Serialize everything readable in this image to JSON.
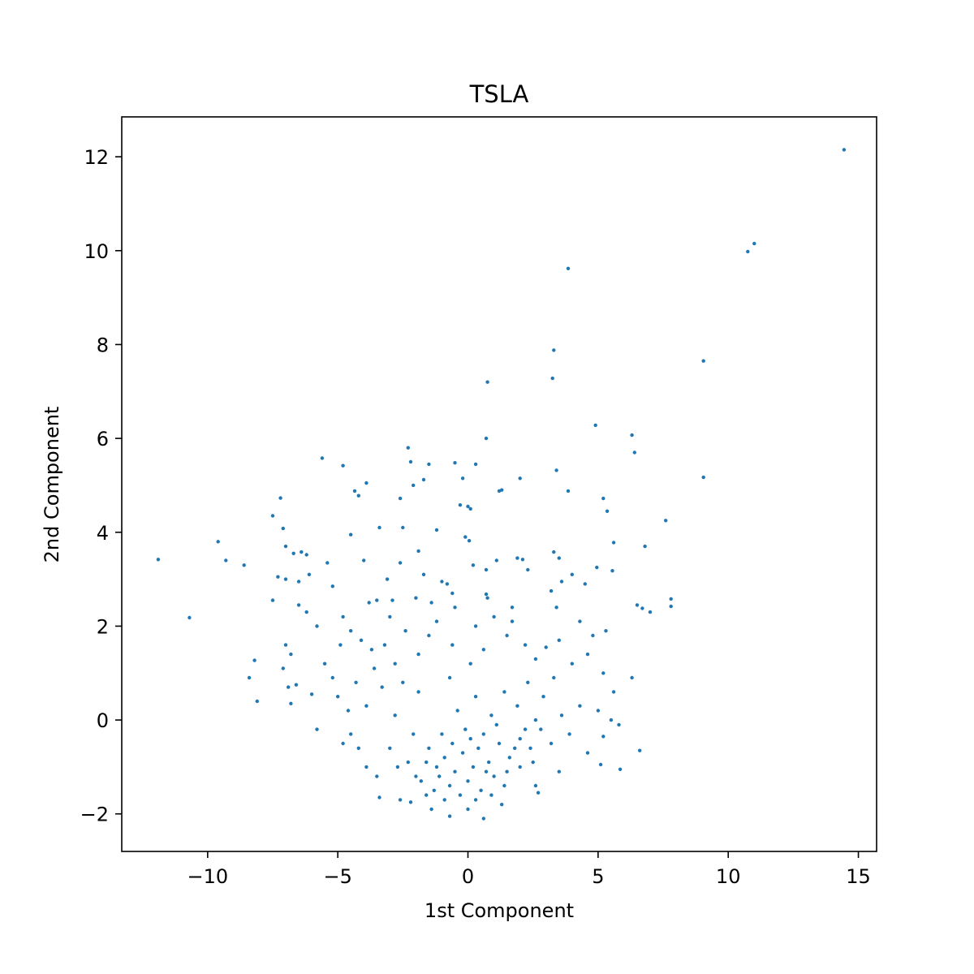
{
  "chart_data": {
    "type": "scatter",
    "title": "TSLA",
    "xlabel": "1st Component",
    "ylabel": "2nd Component",
    "xlim": [
      -13.3,
      15.7
    ],
    "ylim": [
      -2.8,
      12.85
    ],
    "xticks": [
      -10,
      -5,
      0,
      5,
      10,
      15
    ],
    "xtick_labels": [
      "−10",
      "−5",
      "0",
      "5",
      "10",
      "15"
    ],
    "yticks": [
      -2,
      0,
      2,
      4,
      6,
      8,
      10,
      12
    ],
    "ytick_labels": [
      "−2",
      "0",
      "2",
      "4",
      "6",
      "8",
      "10",
      "12"
    ],
    "grid": false,
    "legend": "none",
    "marker_color": "#1f77b4",
    "series": [
      {
        "points": [
          [
            14.45,
            12.15
          ],
          [
            11.0,
            10.15
          ],
          [
            10.75,
            9.98
          ],
          [
            3.85,
            9.62
          ],
          [
            3.3,
            7.88
          ],
          [
            9.05,
            7.65
          ],
          [
            3.25,
            7.28
          ],
          [
            0.75,
            7.2
          ],
          [
            4.9,
            6.28
          ],
          [
            6.3,
            6.07
          ],
          [
            0.7,
            6.0
          ],
          [
            6.4,
            5.7
          ],
          [
            -2.3,
            5.8
          ],
          [
            -5.6,
            5.58
          ],
          [
            -4.8,
            5.42
          ],
          [
            -2.2,
            5.5
          ],
          [
            -1.5,
            5.45
          ],
          [
            -0.5,
            5.48
          ],
          [
            0.3,
            5.45
          ],
          [
            9.05,
            5.17
          ],
          [
            3.4,
            5.32
          ],
          [
            2.0,
            5.15
          ],
          [
            -1.7,
            5.12
          ],
          [
            -0.2,
            5.15
          ],
          [
            -3.9,
            5.05
          ],
          [
            -2.1,
            5.0
          ],
          [
            1.2,
            4.88
          ],
          [
            1.3,
            4.9
          ],
          [
            3.85,
            4.88
          ],
          [
            -4.35,
            4.88
          ],
          [
            -4.2,
            4.78
          ],
          [
            -2.6,
            4.72
          ],
          [
            5.2,
            4.72
          ],
          [
            -7.2,
            4.73
          ],
          [
            -0.3,
            4.58
          ],
          [
            0.0,
            4.55
          ],
          [
            0.1,
            4.5
          ],
          [
            5.35,
            4.45
          ],
          [
            -7.5,
            4.35
          ],
          [
            7.6,
            4.25
          ],
          [
            -2.5,
            4.1
          ],
          [
            -3.4,
            4.1
          ],
          [
            -7.1,
            4.08
          ],
          [
            -1.2,
            4.05
          ],
          [
            -4.5,
            3.95
          ],
          [
            -0.1,
            3.9
          ],
          [
            0.05,
            3.82
          ],
          [
            -9.6,
            3.8
          ],
          [
            5.6,
            3.78
          ],
          [
            -7.0,
            3.7
          ],
          [
            6.8,
            3.7
          ],
          [
            -1.9,
            3.6
          ],
          [
            3.3,
            3.58
          ],
          [
            -6.7,
            3.55
          ],
          [
            -6.4,
            3.58
          ],
          [
            -6.2,
            3.52
          ],
          [
            -11.9,
            3.42
          ],
          [
            -9.3,
            3.4
          ],
          [
            -8.6,
            3.3
          ],
          [
            -5.4,
            3.35
          ],
          [
            -4.0,
            3.4
          ],
          [
            -2.6,
            3.35
          ],
          [
            1.1,
            3.4
          ],
          [
            1.9,
            3.45
          ],
          [
            2.1,
            3.42
          ],
          [
            3.5,
            3.45
          ],
          [
            4.95,
            3.25
          ],
          [
            5.55,
            3.18
          ],
          [
            2.3,
            3.2
          ],
          [
            0.7,
            3.2
          ],
          [
            -7.3,
            3.05
          ],
          [
            -7.0,
            3.0
          ],
          [
            -6.5,
            2.95
          ],
          [
            -6.1,
            3.1
          ],
          [
            -1.0,
            2.95
          ],
          [
            -0.8,
            2.9
          ],
          [
            4.0,
            3.1
          ],
          [
            4.5,
            2.9
          ],
          [
            3.6,
            2.95
          ],
          [
            -5.2,
            2.85
          ],
          [
            7.8,
            2.58
          ],
          [
            7.8,
            2.42
          ],
          [
            6.5,
            2.45
          ],
          [
            6.7,
            2.38
          ],
          [
            7.0,
            2.3
          ],
          [
            0.7,
            2.68
          ],
          [
            0.75,
            2.6
          ],
          [
            3.2,
            2.75
          ],
          [
            -6.5,
            2.45
          ],
          [
            -7.5,
            2.55
          ],
          [
            -3.5,
            2.55
          ],
          [
            -2.9,
            2.55
          ],
          [
            1.7,
            2.4
          ],
          [
            -10.7,
            2.18
          ],
          [
            -8.2,
            1.27
          ],
          [
            -7.0,
            1.6
          ],
          [
            -6.8,
            1.4
          ],
          [
            -8.4,
            0.9
          ],
          [
            -8.1,
            0.4
          ],
          [
            -7.1,
            1.1
          ],
          [
            -6.6,
            0.75
          ],
          [
            -6.0,
            0.55
          ],
          [
            -6.8,
            0.35
          ],
          [
            -5.8,
            -0.2
          ],
          [
            -6.9,
            0.7
          ],
          [
            -5.0,
            0.5
          ],
          [
            -4.8,
            -0.5
          ],
          [
            -4.5,
            -0.3
          ],
          [
            -4.1,
            1.7
          ],
          [
            -3.7,
            1.5
          ],
          [
            -3.2,
            1.6
          ],
          [
            -2.8,
            1.2
          ],
          [
            -2.4,
            1.9
          ],
          [
            -1.9,
            1.4
          ],
          [
            -1.5,
            1.8
          ],
          [
            -1.2,
            2.1
          ],
          [
            -0.6,
            1.6
          ],
          [
            0.1,
            1.2
          ],
          [
            0.6,
            1.5
          ],
          [
            1.0,
            2.2
          ],
          [
            1.5,
            1.8
          ],
          [
            2.2,
            1.6
          ],
          [
            2.6,
            1.3
          ],
          [
            3.0,
            1.55
          ],
          [
            3.5,
            1.7
          ],
          [
            4.0,
            1.2
          ],
          [
            4.6,
            1.4
          ],
          [
            5.2,
            1.0
          ],
          [
            5.6,
            0.6
          ],
          [
            6.3,
            0.9
          ],
          [
            5.0,
            0.2
          ],
          [
            5.5,
            0.0
          ],
          [
            5.8,
            -0.1
          ],
          [
            5.2,
            -0.35
          ],
          [
            5.85,
            -1.05
          ],
          [
            5.1,
            -0.95
          ],
          [
            6.6,
            -0.65
          ],
          [
            4.6,
            -0.7
          ],
          [
            3.5,
            -1.1
          ],
          [
            2.6,
            -1.4
          ],
          [
            2.7,
            -1.55
          ],
          [
            1.4,
            -1.4
          ],
          [
            0.6,
            -2.1
          ],
          [
            0.0,
            -1.9
          ],
          [
            -0.7,
            -2.05
          ],
          [
            -1.4,
            -1.9
          ],
          [
            -2.2,
            -1.75
          ],
          [
            -2.6,
            -1.7
          ],
          [
            -3.4,
            -1.65
          ],
          [
            -3.5,
            -1.2
          ],
          [
            -3.9,
            -1.0
          ],
          [
            -4.2,
            -0.6
          ],
          [
            -4.6,
            0.2
          ],
          [
            -5.2,
            0.9
          ],
          [
            -5.5,
            1.2
          ],
          [
            -4.9,
            1.6
          ],
          [
            -3.3,
            0.7
          ],
          [
            -3.9,
            0.3
          ],
          [
            -2.8,
            0.1
          ],
          [
            -2.1,
            -0.3
          ],
          [
            -1.6,
            -0.9
          ],
          [
            -1.2,
            -1.0
          ],
          [
            -0.9,
            -0.8
          ],
          [
            -0.5,
            -1.1
          ],
          [
            -0.2,
            -0.7
          ],
          [
            0.2,
            -1.0
          ],
          [
            0.4,
            -0.6
          ],
          [
            0.8,
            -0.9
          ],
          [
            1.2,
            -0.5
          ],
          [
            1.6,
            -0.8
          ],
          [
            2.0,
            -0.4
          ],
          [
            2.4,
            -0.6
          ],
          [
            2.8,
            -0.2
          ],
          [
            3.2,
            -0.5
          ],
          [
            3.6,
            0.1
          ],
          [
            3.9,
            -0.3
          ],
          [
            4.3,
            0.3
          ],
          [
            -1.8,
            -1.3
          ],
          [
            -1.3,
            -1.5
          ],
          [
            -0.7,
            -1.4
          ],
          [
            0.0,
            -1.3
          ],
          [
            0.5,
            -1.5
          ],
          [
            1.0,
            -1.2
          ],
          [
            1.5,
            -1.1
          ],
          [
            2.0,
            -1.0
          ],
          [
            2.5,
            -0.9
          ],
          [
            -2.3,
            -0.9
          ],
          [
            -2.7,
            -1.0
          ],
          [
            -3.0,
            -0.6
          ],
          [
            -1.0,
            -0.3
          ],
          [
            -0.4,
            0.2
          ],
          [
            0.3,
            0.5
          ],
          [
            0.9,
            0.1
          ],
          [
            1.4,
            0.6
          ],
          [
            1.9,
            0.3
          ],
          [
            2.3,
            0.8
          ],
          [
            2.9,
            0.5
          ],
          [
            3.3,
            0.9
          ],
          [
            -1.9,
            0.6
          ],
          [
            -2.5,
            0.8
          ],
          [
            -0.7,
            0.9
          ],
          [
            -0.1,
            -0.2
          ],
          [
            0.6,
            -0.3
          ],
          [
            1.1,
            -0.1
          ],
          [
            -1.5,
            -0.6
          ],
          [
            -0.9,
            -1.7
          ],
          [
            -0.3,
            -1.6
          ],
          [
            0.3,
            -1.7
          ],
          [
            0.9,
            -1.6
          ],
          [
            1.3,
            -1.8
          ],
          [
            -1.6,
            -1.6
          ],
          [
            -2.0,
            -1.2
          ],
          [
            -1.1,
            -1.2
          ],
          [
            0.7,
            -1.1
          ],
          [
            1.8,
            -0.6
          ],
          [
            -0.6,
            -0.5
          ],
          [
            0.1,
            -0.4
          ],
          [
            2.2,
            -0.2
          ],
          [
            2.6,
            0.0
          ],
          [
            -3.6,
            1.1
          ],
          [
            -4.3,
            0.8
          ],
          [
            -4.5,
            1.9
          ],
          [
            -3.0,
            2.2
          ],
          [
            -2.0,
            2.6
          ],
          [
            -1.4,
            2.5
          ],
          [
            -0.5,
            2.4
          ],
          [
            0.3,
            2.0
          ],
          [
            1.7,
            2.1
          ],
          [
            4.3,
            2.1
          ],
          [
            4.8,
            1.8
          ],
          [
            5.3,
            1.9
          ],
          [
            3.4,
            2.4
          ],
          [
            -3.8,
            2.5
          ],
          [
            -4.8,
            2.2
          ],
          [
            -5.8,
            2.0
          ],
          [
            -6.2,
            2.3
          ],
          [
            -3.1,
            3.0
          ],
          [
            -1.7,
            3.1
          ],
          [
            0.2,
            3.3
          ],
          [
            -0.6,
            2.7
          ]
        ]
      }
    ]
  }
}
